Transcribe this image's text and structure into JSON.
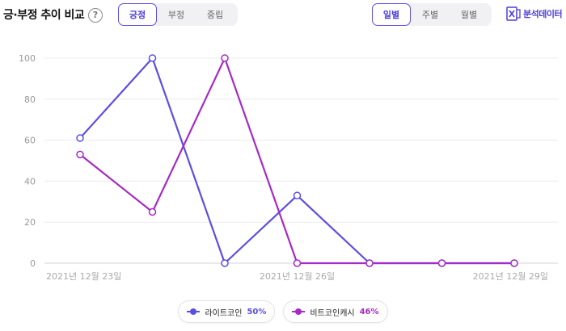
{
  "header": {
    "title": "긍·부정 추이 비교",
    "help_glyph": "?",
    "sentiment_tabs": [
      "긍정",
      "부정",
      "중립"
    ],
    "sentiment_active": 0,
    "period_tabs": [
      "일별",
      "주별",
      "월별"
    ],
    "period_active": 0,
    "excel_label": "분석데이터"
  },
  "colors": {
    "accent": "#5d4fe4",
    "series1": "#5a4fe0",
    "series2": "#a52bc4"
  },
  "chart_data": {
    "type": "line",
    "x": [
      "2021년 12월 23일",
      "2021년 12월 24일",
      "2021년 12월 25일",
      "2021년 12월 26일",
      "2021년 12월 27일",
      "2021년 12월 28일",
      "2021년 12월 29일"
    ],
    "x_tick_labels": [
      "2021년 12월 23일",
      "2021년 12월 26일",
      "2021년 12월 29일"
    ],
    "y_ticks": [
      "0",
      "20",
      "40",
      "60",
      "80",
      "100"
    ],
    "ylim": [
      0,
      100
    ],
    "grid": true,
    "legend_position": "bottom-center",
    "series": [
      {
        "name": "라이트코인",
        "share": "50%",
        "color": "#5a4fe0",
        "values": [
          61,
          100,
          0,
          33,
          0,
          0,
          0
        ]
      },
      {
        "name": "비트코인캐시",
        "share": "46%",
        "color": "#a52bc4",
        "values": [
          53,
          25,
          100,
          0,
          0,
          0,
          0
        ]
      }
    ]
  }
}
